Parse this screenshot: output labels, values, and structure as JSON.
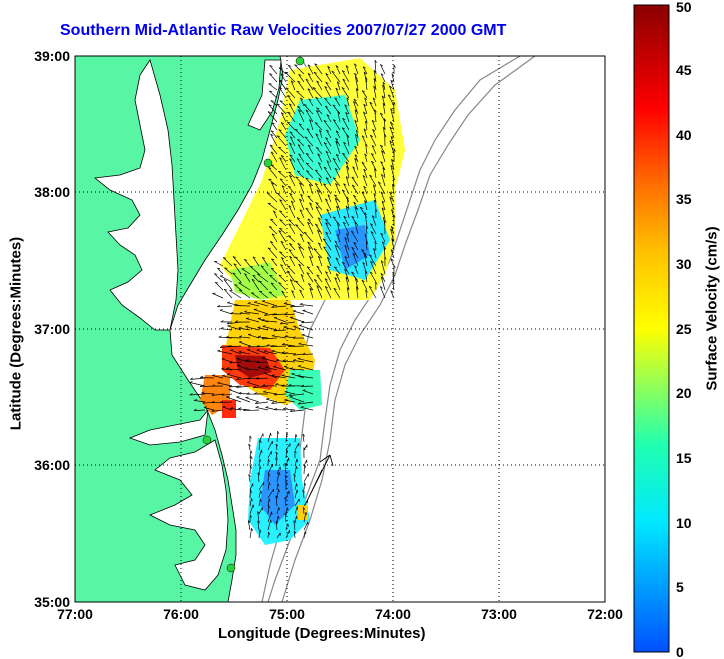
{
  "title": "Southern Mid-Atlantic Raw Velocities 2007/07/27 2000 GMT",
  "xlabel": "Longitude (Degrees:Minutes)",
  "ylabel": "Latitude (Degrees:Minutes)",
  "x_ticks": [
    "77:00",
    "76:00",
    "75:00",
    "74:00",
    "73:00",
    "72:00"
  ],
  "y_ticks": [
    "39:00",
    "38:00",
    "37:00",
    "36:00",
    "35:00"
  ],
  "colorbar": {
    "label": "Surface Velocity (cm/s)",
    "ticks": [
      "0",
      "5",
      "10",
      "15",
      "20",
      "25",
      "30",
      "35",
      "40",
      "45",
      "50"
    ],
    "min": 0,
    "max": 50
  },
  "colors": {
    "land": "#58f5a4",
    "title": "#0000ee",
    "coastline": "#000000",
    "bathymetry": "#888888",
    "station": "#2ad23c"
  }
}
